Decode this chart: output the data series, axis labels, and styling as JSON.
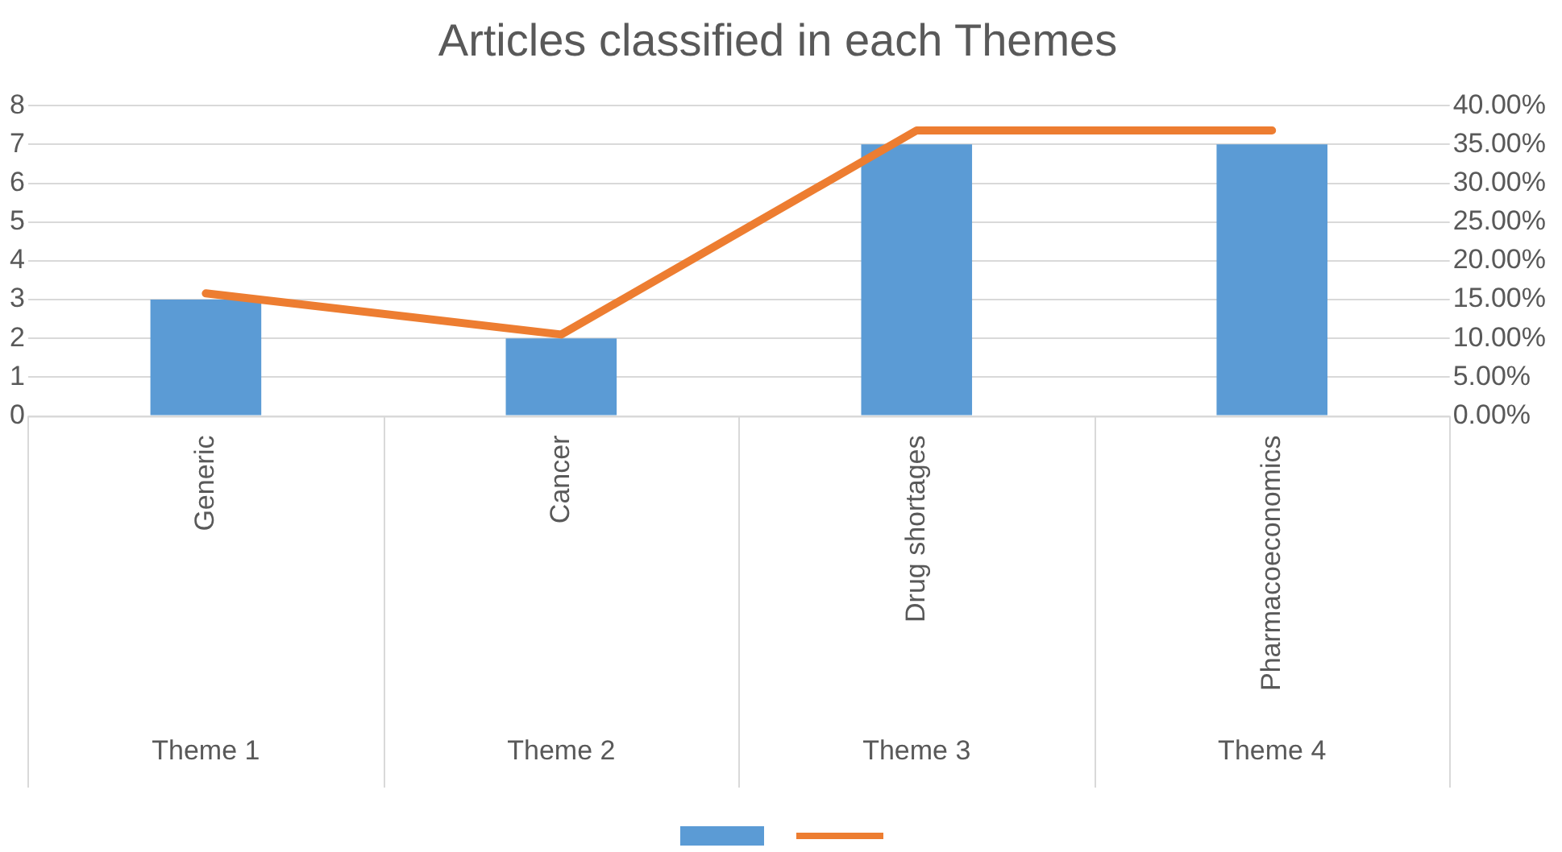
{
  "chart_data": {
    "type": "bar",
    "title": "Articles classified in each Themes",
    "categories": [
      "Generic",
      "Cancer",
      "Drug shortages",
      "Pharmacoeconomics"
    ],
    "series": [
      {
        "color": "#5b9bd5",
        "values": [
          3,
          2,
          7,
          7
        ]
      },
      {
        "type": "line",
        "axis": "y2",
        "color": "#ed7d31",
        "values": [
          15.8,
          10.5,
          36.8,
          36.8
        ],
        "marker": "none"
      }
    ],
    "ylim": [
      0,
      8
    ],
    "yticks": [
      0,
      1,
      2,
      3,
      4,
      5,
      6,
      7,
      8
    ],
    "y2lim": [
      0,
      40
    ],
    "y2ticks": [
      {
        "value": 0,
        "label": "0.00%"
      },
      {
        "value": 5,
        "label": "5.00%"
      },
      {
        "value": 10,
        "label": "10.00%"
      },
      {
        "value": 15,
        "label": "15.00%"
      },
      {
        "value": 20,
        "label": "20.00%"
      },
      {
        "value": 25,
        "label": "25.00%"
      },
      {
        "value": 30,
        "label": "30.00%"
      },
      {
        "value": 35,
        "label": "35.00%"
      },
      {
        "value": 40,
        "label": "40.00%"
      }
    ],
    "annotations": [
      "Theme 1",
      "Theme 2",
      "Theme 3",
      "Theme 4"
    ],
    "grid": "y"
  }
}
